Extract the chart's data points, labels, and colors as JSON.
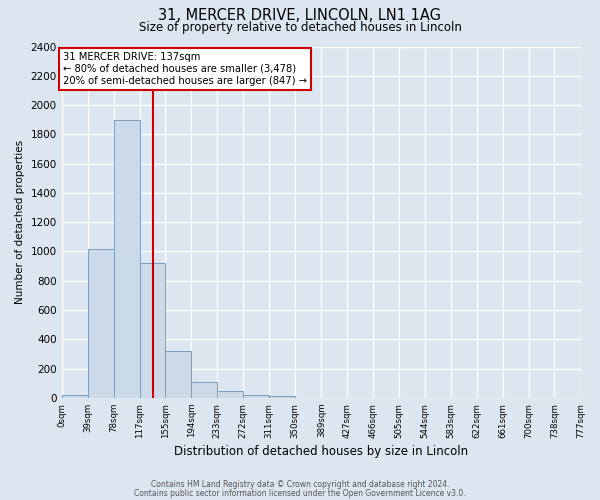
{
  "title": "31, MERCER DRIVE, LINCOLN, LN1 1AG",
  "subtitle": "Size of property relative to detached houses in Lincoln",
  "xlabel": "Distribution of detached houses by size in Lincoln",
  "ylabel": "Number of detached properties",
  "bin_edges": [
    0,
    39,
    78,
    117,
    155,
    194,
    233,
    272,
    311,
    350,
    389,
    427,
    466,
    505,
    544,
    583,
    622,
    661,
    700,
    738,
    777
  ],
  "bin_labels": [
    "0sqm",
    "39sqm",
    "78sqm",
    "117sqm",
    "155sqm",
    "194sqm",
    "233sqm",
    "272sqm",
    "311sqm",
    "350sqm",
    "389sqm",
    "427sqm",
    "466sqm",
    "505sqm",
    "544sqm",
    "583sqm",
    "622sqm",
    "661sqm",
    "700sqm",
    "738sqm",
    "777sqm"
  ],
  "counts": [
    20,
    1020,
    1900,
    920,
    320,
    105,
    47,
    20,
    10,
    0,
    0,
    0,
    0,
    0,
    0,
    0,
    0,
    0,
    0,
    0
  ],
  "bar_color": "#ccd9e8",
  "bar_edge_color": "#7a9dbf",
  "red_line_x": 137,
  "annotation_title": "31 MERCER DRIVE: 137sqm",
  "annotation_line1": "← 80% of detached houses are smaller (3,478)",
  "annotation_line2": "20% of semi-detached houses are larger (847) →",
  "annotation_box_color": "#ffffff",
  "annotation_box_edge": "#cc0000",
  "red_line_color": "#cc0000",
  "footer1": "Contains HM Land Registry data © Crown copyright and database right 2024.",
  "footer2": "Contains public sector information licensed under the Open Government Licence v3.0.",
  "ylim": [
    0,
    2400
  ],
  "fig_bg_color": "#dce6f0",
  "plot_bg_color": "#dce6f0",
  "grid_color": "#ffffff",
  "yticks": [
    0,
    200,
    400,
    600,
    800,
    1000,
    1200,
    1400,
    1600,
    1800,
    2000,
    2200,
    2400
  ]
}
